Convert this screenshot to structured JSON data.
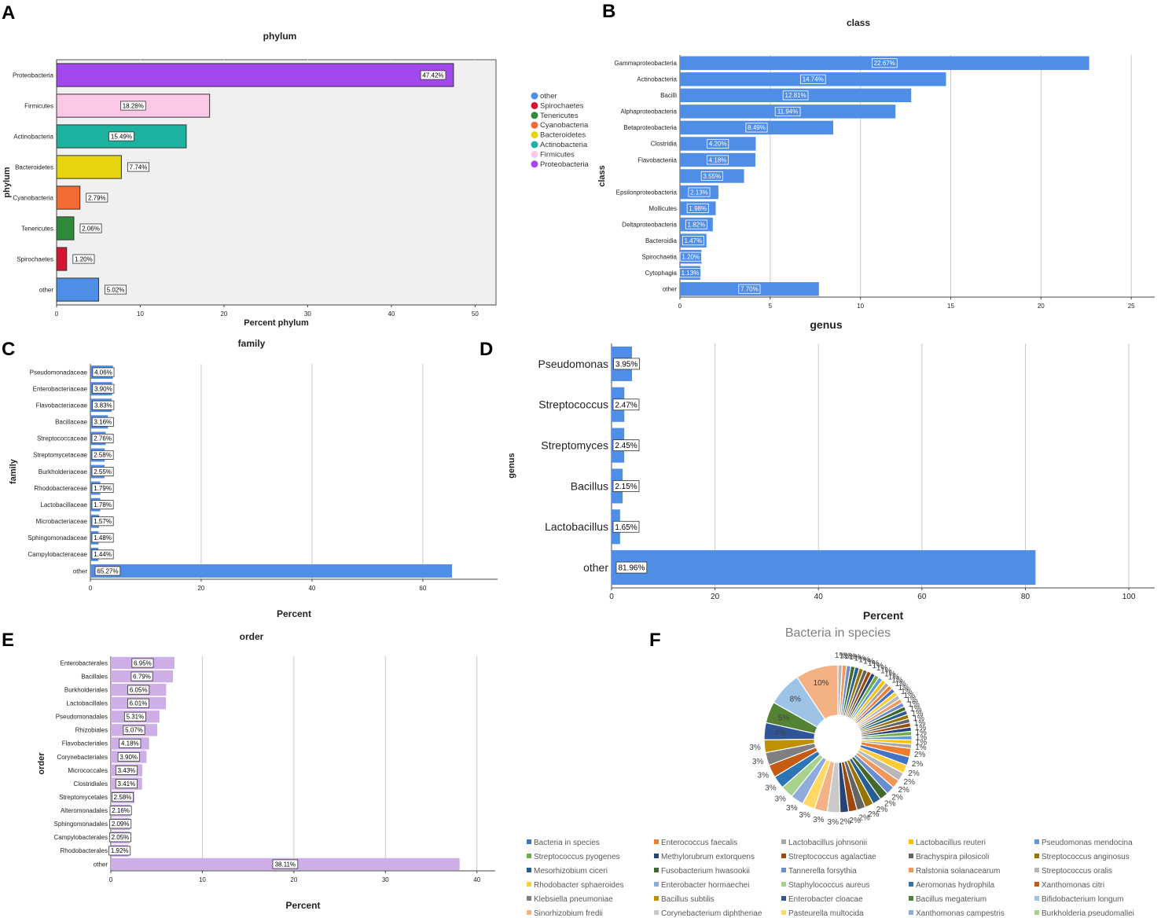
{
  "panels": {
    "A": "A",
    "B": "B",
    "C": "C",
    "D": "D",
    "E": "E",
    "F": "F"
  },
  "chart_data": [
    {
      "id": "A",
      "type": "bar",
      "orientation": "horizontal",
      "title": "phylum",
      "xlabel": "Percent phylum",
      "ylabel": "phylum",
      "xlim": [
        0,
        52.5
      ],
      "xticks": [
        0,
        10,
        20,
        30,
        40,
        50
      ],
      "categories": [
        "Proteobacteria",
        "Firmicutes",
        "Actinobacteria",
        "Bacteroidetes",
        "Cyanobacteria",
        "Tenericutes",
        "Spirochaetes",
        "other"
      ],
      "values": [
        47.42,
        18.28,
        15.49,
        7.74,
        2.79,
        2.06,
        1.2,
        5.02
      ],
      "labels": [
        "47.42%",
        "18.28%",
        "15.49%",
        "7.74%",
        "2.79%",
        "2.06%",
        "1.20%",
        "5.02%"
      ],
      "colors": [
        "#a347ee",
        "#fcc8e6",
        "#1bb3a0",
        "#e6d50c",
        "#f36b30",
        "#2e8b3a",
        "#d51532",
        "#4f8ee6"
      ],
      "legend": [
        {
          "name": "other",
          "color": "#4f8ee6"
        },
        {
          "name": "Spirochaetes",
          "color": "#d51532"
        },
        {
          "name": "Tenericutes",
          "color": "#2e8b3a"
        },
        {
          "name": "Cyanobacteria",
          "color": "#f36b30"
        },
        {
          "name": "Bacteroidetes",
          "color": "#e6d50c"
        },
        {
          "name": "Actinobacteria",
          "color": "#1bb3a0"
        },
        {
          "name": "Firmicutes",
          "color": "#fcc8e6"
        },
        {
          "name": "Proteobacteria",
          "color": "#a347ee"
        }
      ]
    },
    {
      "id": "B",
      "type": "bar",
      "orientation": "horizontal",
      "title": "class",
      "xlabel": "",
      "ylabel": "class",
      "xlim": [
        0,
        26.3
      ],
      "xticks": [
        0,
        5,
        10,
        15,
        20,
        25
      ],
      "categories": [
        "Gammaproteobacteria",
        "Actinobacteria",
        "Bacilli",
        "Alphaproteobacteria",
        "Betaproteobacteria",
        "Clostridia",
        "Flavobacteriia",
        "",
        "Epsilonproteobacteria",
        "Mollicutes",
        "Deltaproteobacteria",
        "Bacteroidia",
        "Spirochaetia",
        "Cytophagia",
        "other"
      ],
      "values": [
        22.67,
        14.74,
        12.81,
        11.94,
        8.49,
        4.2,
        4.18,
        3.55,
        2.13,
        1.98,
        1.82,
        1.47,
        1.2,
        1.13,
        7.7
      ],
      "labels": [
        "22.67%",
        "14.74%",
        "12.81%",
        "11.94%",
        "8.49%",
        "4.20%",
        "4.18%",
        "3.55%",
        "2.13%",
        "1.98%",
        "1.82%",
        "1.47%",
        "1.20%",
        "1.13%",
        "7.70%"
      ]
    },
    {
      "id": "C",
      "type": "bar",
      "orientation": "horizontal",
      "title": "family",
      "xlabel": "Percent",
      "ylabel": "family",
      "xlim": [
        0,
        73.5
      ],
      "xticks": [
        0,
        20,
        40,
        60
      ],
      "categories": [
        "Pseudomonadaceae",
        "Enterobacteriaceae",
        "Flavobacteriaceae",
        "Bacillaceae",
        "Streptococcaceae",
        "Streptomycetaceae",
        "Burkholderiaceae",
        "Rhodobacteraceae",
        "Lactobacillaceae",
        "Microbacteriaceae",
        "Sphingomonadaceae",
        "Campylobacteraceae",
        "other"
      ],
      "values": [
        4.06,
        3.9,
        3.83,
        3.16,
        2.76,
        2.58,
        2.55,
        1.79,
        1.78,
        1.57,
        1.48,
        1.44,
        65.27
      ],
      "labels": [
        "4.06%",
        "3.90%",
        "3.83%",
        "3.16%",
        "2.76%",
        "2.58%",
        "2.55%",
        "1.79%",
        "1.78%",
        "1.57%",
        "1.48%",
        "1.44%",
        "65.27%"
      ]
    },
    {
      "id": "D",
      "type": "bar",
      "orientation": "horizontal",
      "title": "genus",
      "xlabel": "Percent",
      "ylabel": "genus",
      "xlim": [
        0,
        105
      ],
      "xticks": [
        0,
        20,
        40,
        60,
        80,
        100
      ],
      "categories": [
        "Pseudomonas",
        "Streptococcus",
        "Streptomyces",
        "Bacillus",
        "Lactobacillus",
        "other"
      ],
      "values": [
        3.95,
        2.47,
        2.45,
        2.15,
        1.65,
        81.96
      ],
      "labels": [
        "3.95%",
        "2.47%",
        "2.45%",
        "2.15%",
        "1.65%",
        "81.96%"
      ]
    },
    {
      "id": "E",
      "type": "bar",
      "orientation": "horizontal",
      "title": "order",
      "xlabel": "Percent",
      "ylabel": "order",
      "xlim": [
        0,
        42
      ],
      "xticks": [
        0,
        10,
        20,
        30,
        40
      ],
      "categories": [
        "Enterobacterales",
        "Bacillales",
        "Burkholderiales",
        "Lactobacillales",
        "Pseudomonadales",
        "Rhizobiales",
        "Flavobacteriales",
        "Corynebacteriales",
        "Micrococcales",
        "Clostridiales",
        "Streptomycetales",
        "Alteromonadales",
        "Sphingomonadales",
        "Campylobacterales",
        "Rhodobacterales",
        "other"
      ],
      "values": [
        6.95,
        6.79,
        6.05,
        6.01,
        5.31,
        5.07,
        4.18,
        3.9,
        3.43,
        3.41,
        2.58,
        2.16,
        2.09,
        2.05,
        1.92,
        38.11
      ],
      "labels": [
        "6.95%",
        "6.79%",
        "6.05%",
        "6.01%",
        "5.31%",
        "5.07%",
        "4.18%",
        "3.90%",
        "3.43%",
        "3.41%",
        "2.58%",
        "2.16%",
        "2.09%",
        "2.05%",
        "1.92%",
        "38.11%"
      ]
    },
    {
      "id": "F",
      "type": "pie",
      "donut": true,
      "title": "Bacteria in species",
      "values": [
        10,
        8,
        5,
        4,
        3,
        3,
        3,
        3,
        3,
        3,
        3,
        3,
        3,
        2,
        2,
        2,
        2,
        2,
        2,
        2,
        2,
        2,
        2,
        2,
        2,
        1,
        1,
        1,
        1,
        1,
        1,
        1,
        1,
        1,
        1,
        1,
        1,
        1,
        1,
        1,
        1,
        1,
        1,
        1,
        1,
        1,
        1,
        1,
        1,
        1,
        1,
        1,
        1,
        1
      ],
      "labels": [
        "10%",
        "8%",
        "5%",
        "4%",
        "3%",
        "3%",
        "3%",
        "3%",
        "3%",
        "3%",
        "3%",
        "3%",
        "3%",
        "2%",
        "2%",
        "2%",
        "2%",
        "2%",
        "2%",
        "2%",
        "2%",
        "2%",
        "2%",
        "2%",
        "2%",
        "1%",
        "1%",
        "1%",
        "1%",
        "1%",
        "1%",
        "1%",
        "1%",
        "1%",
        "1%",
        "1%",
        "1%",
        "1%",
        "1%",
        "1%",
        "1%",
        "1%",
        "1%",
        "1%",
        "1%",
        "1%",
        "1%",
        "1%",
        "1%",
        "1%",
        "1%",
        "1%",
        "1%",
        "1%"
      ],
      "colors": [
        "#f4b183",
        "#9dc3e6",
        "#548235",
        "#2f5597",
        "#bf9000",
        "#7f7f7f",
        "#c55a11",
        "#2e75b6",
        "#a9d18e",
        "#8faadc",
        "#ffd966",
        "#f4b183",
        "#c9c9c9",
        "#264478",
        "#9e480e",
        "#636363",
        "#997300",
        "#255e91",
        "#43682b",
        "#698ed0",
        "#f1975a",
        "#b7b7b7",
        "#ffcd33",
        "#4472c4",
        "#ed7d31",
        "#a5a5a5",
        "#ffc000",
        "#5b9bd5",
        "#70ad47",
        "#264478",
        "#9e480e",
        "#636363",
        "#997300",
        "#255e91",
        "#43682b",
        "#698ed0",
        "#f1975a",
        "#b7b7b7",
        "#ffcd33",
        "#4472c4",
        "#ed7d31",
        "#a5a5a5",
        "#ffc000",
        "#5b9bd5",
        "#70ad47",
        "#264478",
        "#9e480e",
        "#636363",
        "#997300",
        "#255e91",
        "#43682b",
        "#698ed0",
        "#f1975a",
        "#b7b7b7"
      ],
      "legend": [
        {
          "name": "Bacteria in species",
          "color": "#4472c4"
        },
        {
          "name": "Enterococcus faecalis",
          "color": "#ed7d31"
        },
        {
          "name": "Lactobacillus johnsonii",
          "color": "#a5a5a5"
        },
        {
          "name": "Lactobacillus reuteri",
          "color": "#ffc000"
        },
        {
          "name": "Pseudomonas mendocina",
          "color": "#5b9bd5"
        },
        {
          "name": "Streptococcus pyogenes",
          "color": "#70ad47"
        },
        {
          "name": "Methylorubrum extorquens",
          "color": "#264478"
        },
        {
          "name": "Streptococcus agalactiae",
          "color": "#9e480e"
        },
        {
          "name": "Brachyspira pilosicoli",
          "color": "#636363"
        },
        {
          "name": "Streptococcus anginosus",
          "color": "#997300"
        },
        {
          "name": "Mesorhizobium ciceri",
          "color": "#255e91"
        },
        {
          "name": "Fusobacterium hwasookii",
          "color": "#43682b"
        },
        {
          "name": "Tannerella forsythia",
          "color": "#698ed0"
        },
        {
          "name": "Ralstonia solanacearum",
          "color": "#f1975a"
        },
        {
          "name": "Streptococcus oralis",
          "color": "#b7b7b7"
        },
        {
          "name": "Rhodobacter sphaeroides",
          "color": "#ffcd33"
        },
        {
          "name": "Enterobacter hormaechei",
          "color": "#8faadc"
        },
        {
          "name": "Staphylococcus aureus",
          "color": "#a9d18e"
        },
        {
          "name": "Aeromonas hydrophila",
          "color": "#2e75b6"
        },
        {
          "name": "Xanthomonas citri",
          "color": "#c55a11"
        },
        {
          "name": "Klebsiella pneumoniae",
          "color": "#7f7f7f"
        },
        {
          "name": "Bacillus subtilis",
          "color": "#bf9000"
        },
        {
          "name": "Enterobacter cloacae",
          "color": "#2f5597"
        },
        {
          "name": "Bacillus megaterium",
          "color": "#548235"
        },
        {
          "name": "Bifidobacterium longum",
          "color": "#9dc3e6"
        },
        {
          "name": "Sinorhizobium fredii",
          "color": "#f4b183"
        },
        {
          "name": "Corynebacterium diphtheriae",
          "color": "#c9c9c9"
        },
        {
          "name": "Pasteurella multocida",
          "color": "#ffd966"
        },
        {
          "name": "Xanthomonas campestris",
          "color": "#8faadc"
        },
        {
          "name": "Burkholderia pseudomallei",
          "color": "#a9d18e"
        }
      ]
    }
  ]
}
